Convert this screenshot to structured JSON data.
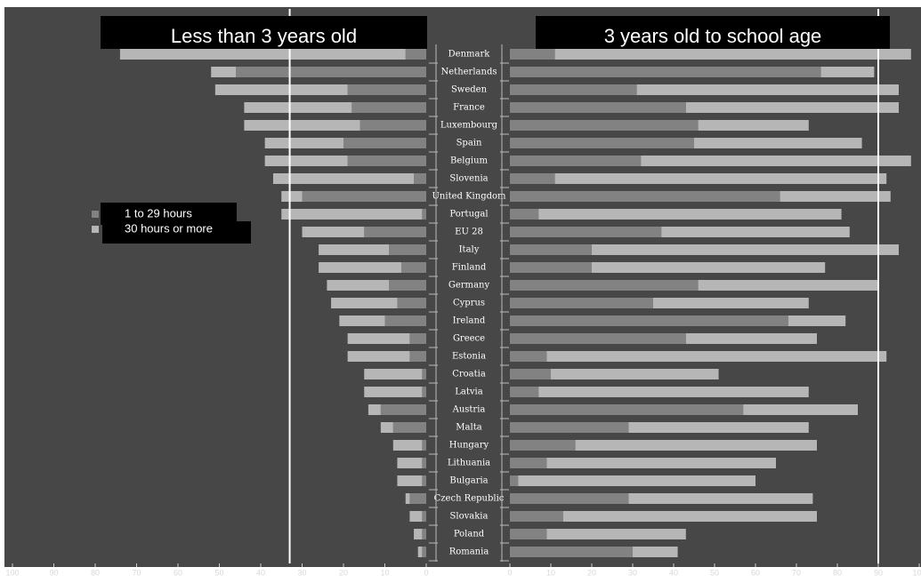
{
  "chart_data": {
    "type": "butterfly",
    "categories": [
      "Denmark",
      "Netherlands",
      "Sweden",
      "France",
      "Luxembourg",
      "Spain",
      "Belgium",
      "Slovenia",
      "United Kingdom",
      "Portugal",
      "EU 28",
      "Italy",
      "Finland",
      "Germany",
      "Cyprus",
      "Ireland",
      "Greece",
      "Estonia",
      "Croatia",
      "Latvia",
      "Austria",
      "Malta",
      "Hungary",
      "Lithuania",
      "Bulgaria",
      "Czech Republic",
      "Slovakia",
      "Poland",
      "Romania"
    ],
    "series": [
      {
        "name": "1 to 29 hours",
        "color": "#828282"
      },
      {
        "name": "30 hours or more",
        "color": "#b6b6b6"
      }
    ],
    "panels": [
      {
        "title": "Less than 3 years old",
        "xlim": [
          100,
          0
        ],
        "xticks": [
          100,
          90,
          80,
          70,
          60,
          50,
          40,
          30,
          20,
          10,
          0
        ],
        "reference_line": 33,
        "values": [
          [
            5,
            46,
            19,
            18,
            16,
            20,
            19,
            3,
            30,
            1,
            15,
            9,
            6,
            9,
            7,
            10,
            4,
            4,
            1,
            1,
            11,
            8,
            1,
            1,
            1,
            4,
            1,
            1,
            1
          ],
          [
            69,
            6,
            32,
            26,
            28,
            19,
            20,
            34,
            5,
            34,
            15,
            17,
            20,
            15,
            16,
            11,
            15,
            15,
            14,
            14,
            3,
            3,
            7,
            6,
            6,
            1,
            3,
            2,
            1
          ]
        ]
      },
      {
        "title": "3 years old to school age",
        "xlim": [
          0,
          100
        ],
        "xticks": [
          0,
          10,
          20,
          30,
          40,
          50,
          60,
          70,
          80,
          90,
          100
        ],
        "reference_line": 90,
        "values": [
          [
            11,
            76,
            31,
            43,
            46,
            45,
            32,
            11,
            66,
            7,
            37,
            20,
            20,
            46,
            35,
            68,
            43,
            9,
            10,
            7,
            57,
            29,
            16,
            9,
            2,
            29,
            13,
            9,
            30
          ],
          [
            87,
            13,
            64,
            52,
            27,
            41,
            66,
            81,
            27,
            74,
            46,
            75,
            57,
            44,
            38,
            14,
            32,
            83,
            41,
            66,
            28,
            44,
            59,
            56,
            58,
            45,
            62,
            34,
            11
          ]
        ]
      }
    ]
  }
}
